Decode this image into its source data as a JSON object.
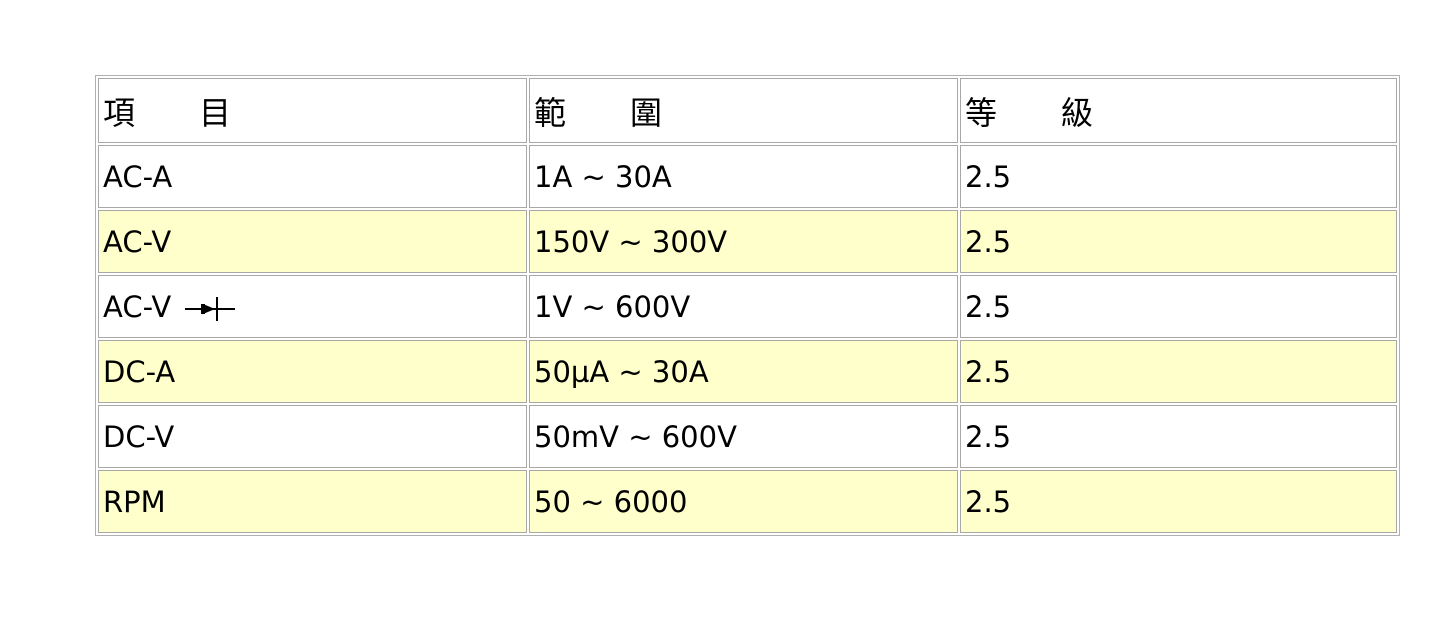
{
  "table": {
    "header": [
      "項　　目",
      "範　　圍",
      "等　　級"
    ],
    "rows": [
      [
        "AC-A",
        "1A ~ 30A",
        "2.5"
      ],
      [
        "AC-V",
        "150V ~ 300V",
        "2.5"
      ],
      [
        "AC-V",
        "1V ~ 600V",
        "2.5"
      ],
      [
        "DC-A",
        "50µA ~ 30A",
        "2.5"
      ],
      [
        "DC-V",
        "50mV ~ 600V",
        "2.5"
      ],
      [
        "RPM",
        "50 ~ 6000",
        "2.5"
      ]
    ]
  }
}
